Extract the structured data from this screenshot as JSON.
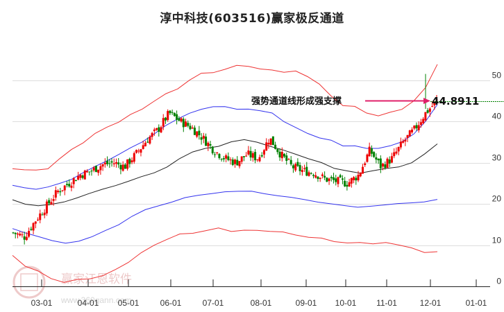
{
  "title": "淳中科技(603516)赢家极反通道",
  "watermark": {
    "brand": "赢家江恩软件",
    "url": "www.360gann.com",
    "logo_text": [
      "江",
      "赢",
      "恩",
      "家"
    ]
  },
  "colors": {
    "up": "#ee0000",
    "down": "#008000",
    "outer_band": "#ee3333",
    "inner_band": "#3333ee",
    "mid_line": "#222222",
    "arrow": "#e0206a",
    "support_line": "#008000",
    "grid": "#dddddd"
  },
  "chart_data": {
    "type": "candlestick",
    "title": "淳中科技(603516)赢家极反通道",
    "xlabel": "",
    "ylabel": "",
    "ylim": [
      0,
      55
    ],
    "y_ticks": [
      0,
      10,
      20,
      30,
      40,
      50
    ],
    "x_ticks": [
      "03-01",
      "04-01",
      "05-01",
      "06-01",
      "07-01",
      "08-01",
      "09-01",
      "10-01",
      "11-01",
      "12-01",
      "01-01"
    ],
    "grid": true,
    "annotation": {
      "text": "强势通道线形成强支撑",
      "value": "44.8911",
      "support_level": 44.8911
    },
    "series": [
      {
        "name": "outer_upper",
        "color": "#ee3333",
        "values_approx": [
          28.5,
          28.4,
          28,
          28.6,
          31,
          33,
          35,
          37,
          38.5,
          40,
          41.5,
          43,
          45,
          46.5,
          48,
          50,
          51.5,
          52,
          52.5,
          53.5,
          53.5,
          52.5,
          52.5,
          52,
          52,
          51,
          49,
          46,
          44,
          43.5,
          42,
          41.5,
          42,
          43,
          45,
          48,
          54
        ]
      },
      {
        "name": "inner_upper",
        "color": "#3333ee",
        "values_approx": [
          24.5,
          24,
          23.5,
          24,
          25,
          26,
          27.5,
          29,
          30.5,
          32,
          33.5,
          35,
          37,
          39,
          40.5,
          42,
          43,
          43.5,
          43.5,
          43,
          43,
          42.5,
          42,
          40,
          38.5,
          37,
          36,
          35.5,
          34,
          34,
          33.5,
          33.5,
          34,
          35,
          37,
          40,
          44
        ]
      },
      {
        "name": "middle",
        "color": "#222222",
        "values_approx": [
          21,
          20,
          19.5,
          19.8,
          20.5,
          21.5,
          22.5,
          23.5,
          24.5,
          25.5,
          26.5,
          27.5,
          29,
          31,
          32.5,
          33.5,
          34,
          35,
          35.5,
          35,
          34,
          33,
          32,
          31,
          30,
          28.5,
          28,
          27.5,
          28,
          28.5,
          29,
          30,
          32,
          34.5
        ]
      },
      {
        "name": "inner_lower",
        "color": "#3333ee",
        "values_approx": [
          14,
          13,
          12,
          11,
          10.5,
          11,
          12,
          13.5,
          15,
          17,
          18.5,
          19.5,
          20.5,
          21.5,
          22,
          22.5,
          23,
          23,
          23,
          22.5,
          22,
          21.5,
          21,
          20.5,
          20,
          19.5,
          19.2,
          19.5,
          19.7,
          20,
          20.3,
          20.5,
          21
        ]
      },
      {
        "name": "outer_lower",
        "color": "#ee3333",
        "values_approx": [
          7.5,
          5,
          3.5,
          2,
          1,
          1.5,
          2,
          2.5,
          4,
          6,
          8,
          10,
          11.5,
          12.5,
          13,
          13.5,
          14,
          13.5,
          13.5,
          13.5,
          13.5,
          13,
          12.5,
          12,
          11.5,
          11,
          10.5,
          10.5,
          10.5,
          10.5,
          10,
          9.5,
          8,
          8.5
        ]
      },
      {
        "name": "close_price",
        "color": "#ee0000",
        "values_approx": [
          13,
          12,
          16,
          19.5,
          23,
          25,
          27,
          28,
          29.5,
          30,
          29,
          32,
          35.5,
          38,
          42,
          40,
          38.5,
          36,
          33,
          31,
          30,
          32,
          31,
          36,
          32,
          29,
          28,
          27.5,
          26,
          25.5,
          25,
          27,
          33,
          29,
          31,
          35,
          38,
          42,
          44.9
        ]
      }
    ]
  }
}
